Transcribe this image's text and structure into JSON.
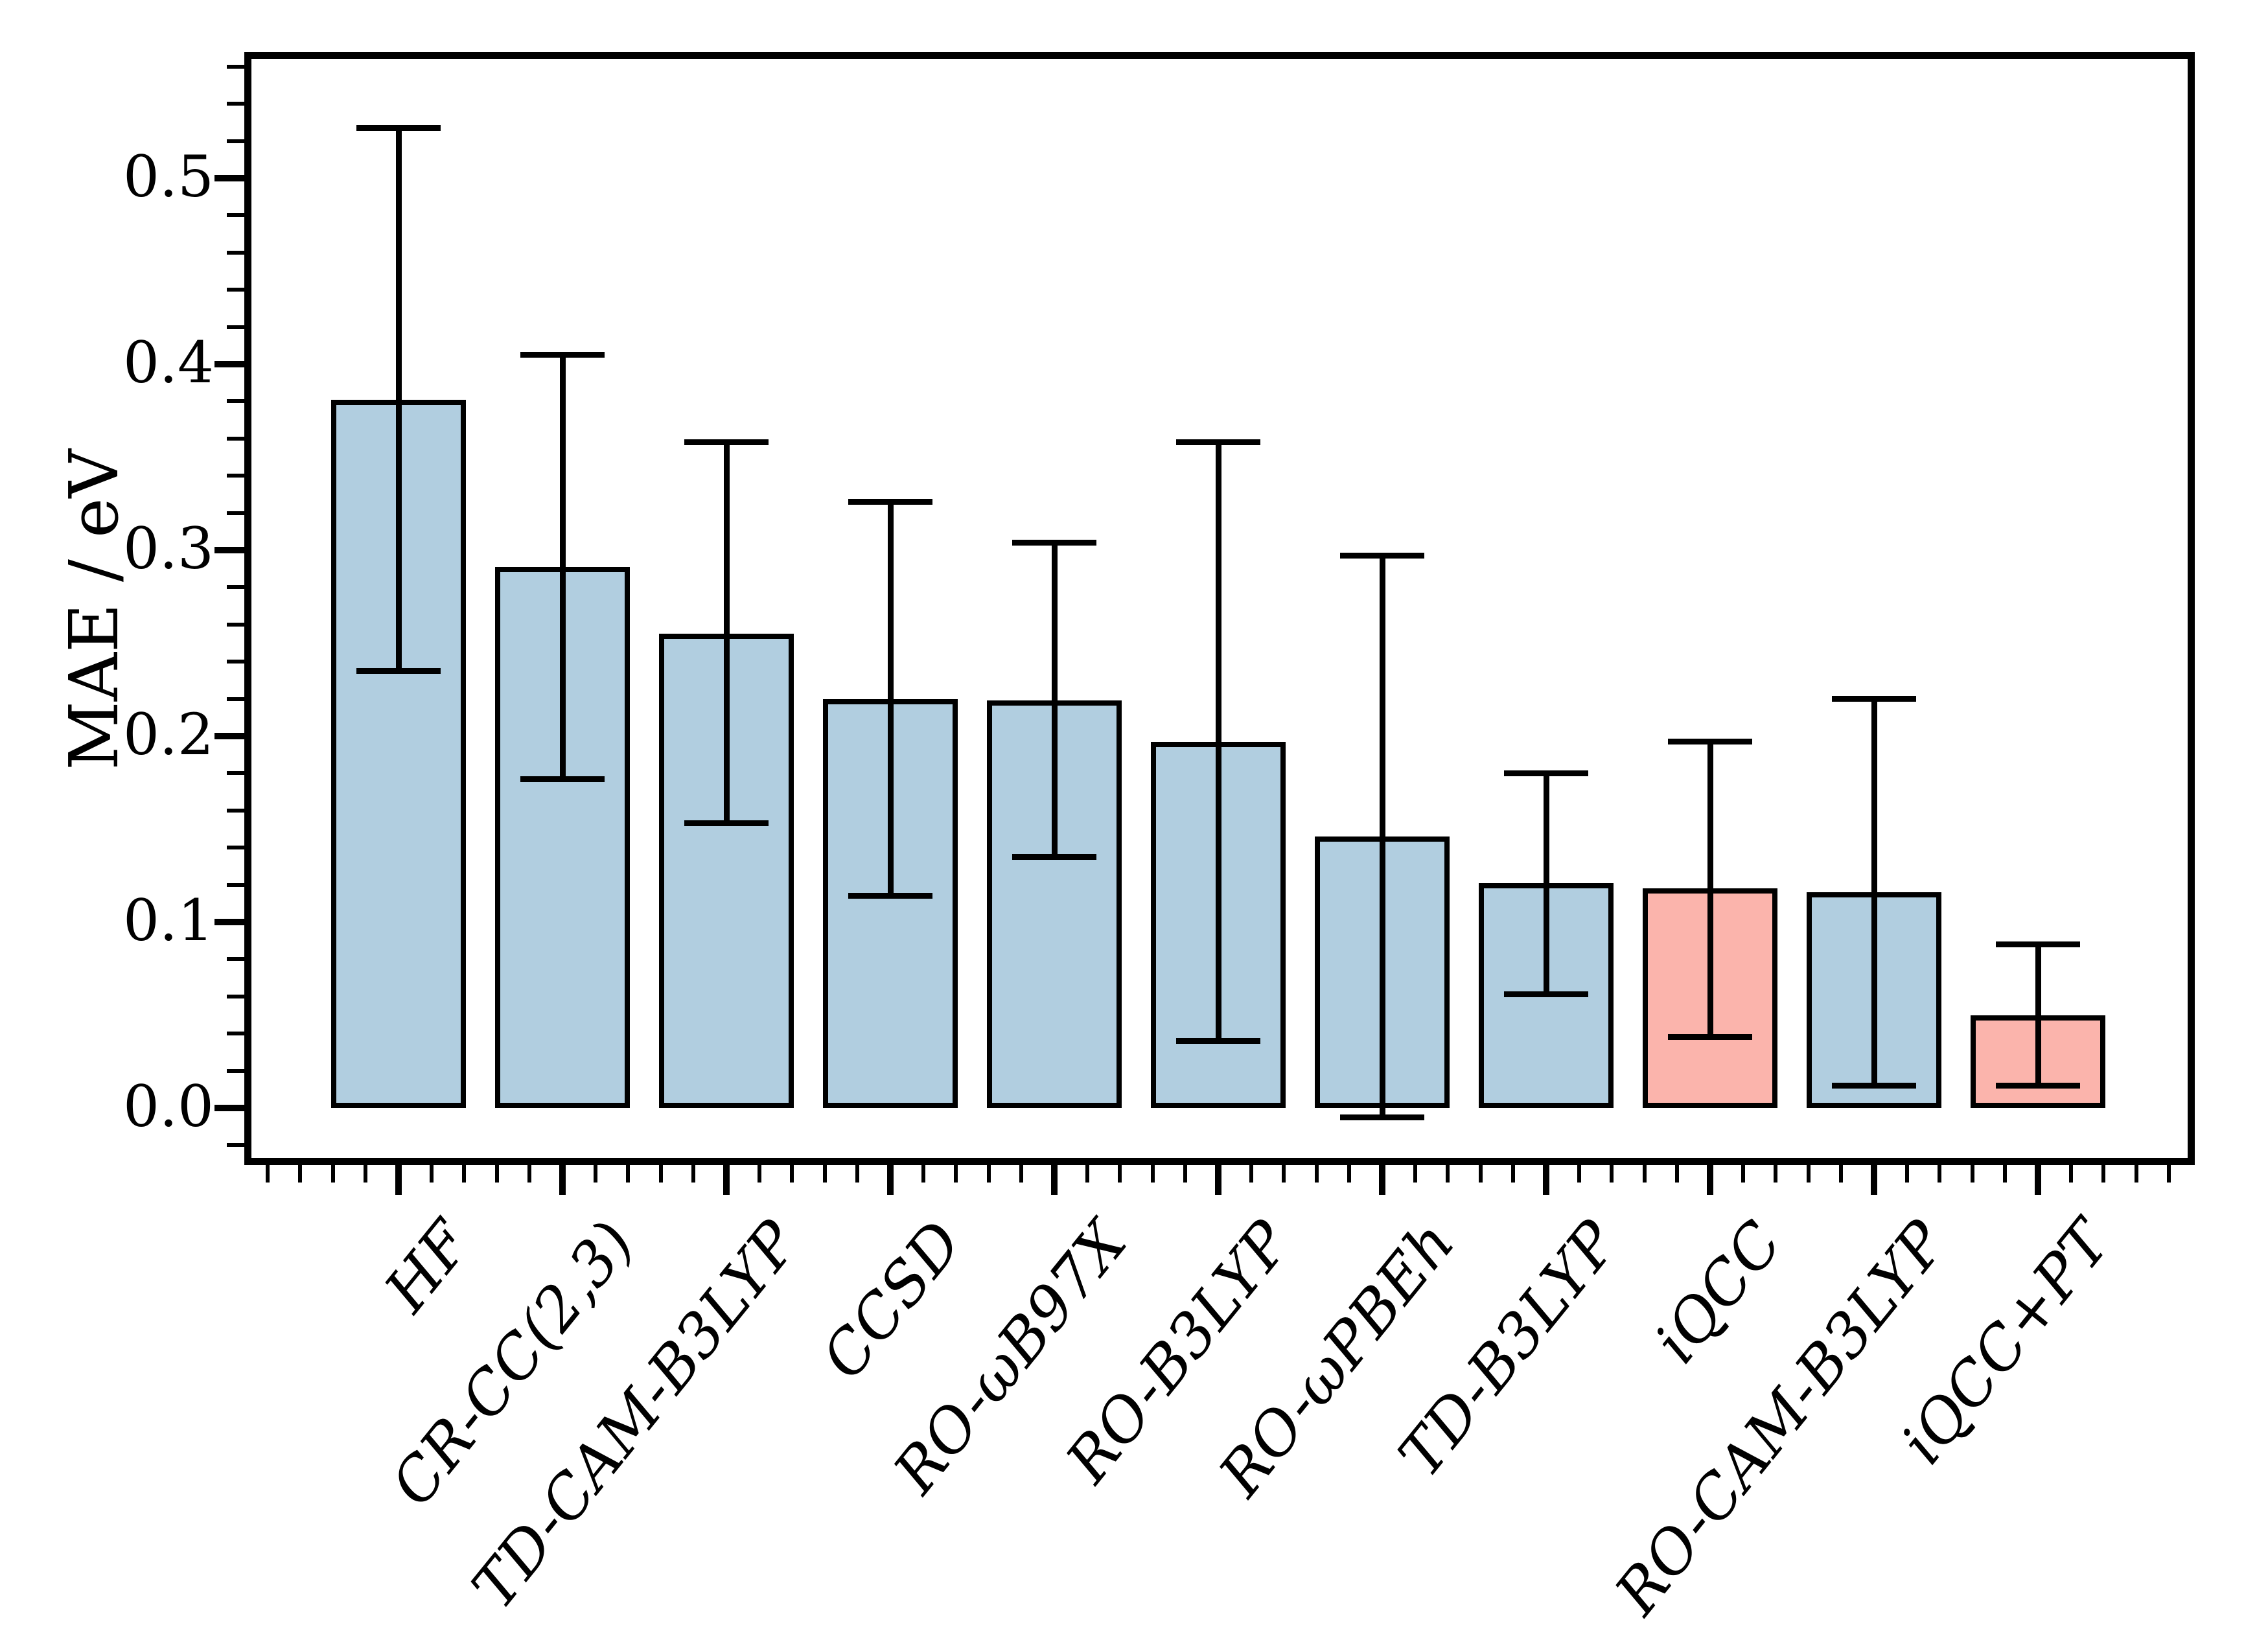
{
  "chart_data": {
    "type": "bar",
    "title": "",
    "xlabel": "",
    "ylabel": "MAE / eV",
    "categories": [
      "HF",
      "CR-CC(2,3)",
      "TD-CAM-B3LYP",
      "CCSD",
      "RO-ωB97X",
      "RO-B3LYP",
      "RO-ωPBEh",
      "TD-B3LYP",
      "iQCC",
      "RO-CAM-B3LYP",
      "iQCC+PT"
    ],
    "values": [
      0.381,
      0.291,
      0.255,
      0.22,
      0.219,
      0.197,
      0.146,
      0.121,
      0.118,
      0.116,
      0.05
    ],
    "error_upper": [
      0.527,
      0.405,
      0.358,
      0.326,
      0.304,
      0.358,
      0.297,
      0.18,
      0.197,
      0.22,
      0.088
    ],
    "error_lower": [
      0.235,
      0.177,
      0.153,
      0.114,
      0.135,
      0.036,
      -0.005,
      0.061,
      0.038,
      0.012,
      0.012
    ],
    "highlight_indices": [
      8,
      10
    ],
    "colors": {
      "bar_blue": "#b1cee0",
      "bar_pink": "#fbb4ac",
      "edge": "#000000",
      "background": "#ffffff"
    },
    "yticks": {
      "values": [
        0.0,
        0.1,
        0.2,
        0.3,
        0.4,
        0.5
      ],
      "labels": [
        "0.0",
        "0.1",
        "0.2",
        "0.3",
        "0.4",
        "0.5"
      ]
    },
    "ylim": [
      -0.031,
      0.564
    ],
    "minor_tick_step_y": 0.02,
    "grid": false,
    "legend": null
  }
}
